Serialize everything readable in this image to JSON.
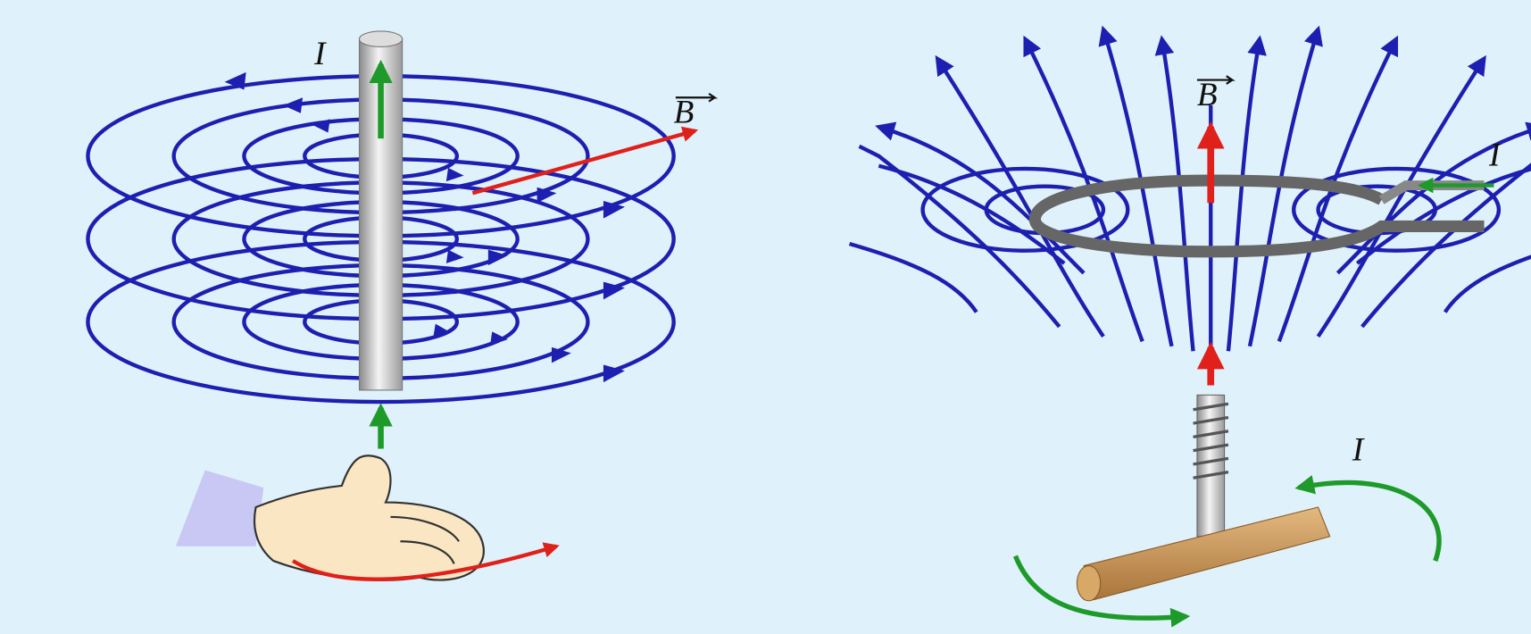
{
  "left_panel": {
    "current_label": "I",
    "field_label": "B"
  },
  "right_panel": {
    "field_label": "B",
    "current_label": "I",
    "rotation_label": "I"
  }
}
